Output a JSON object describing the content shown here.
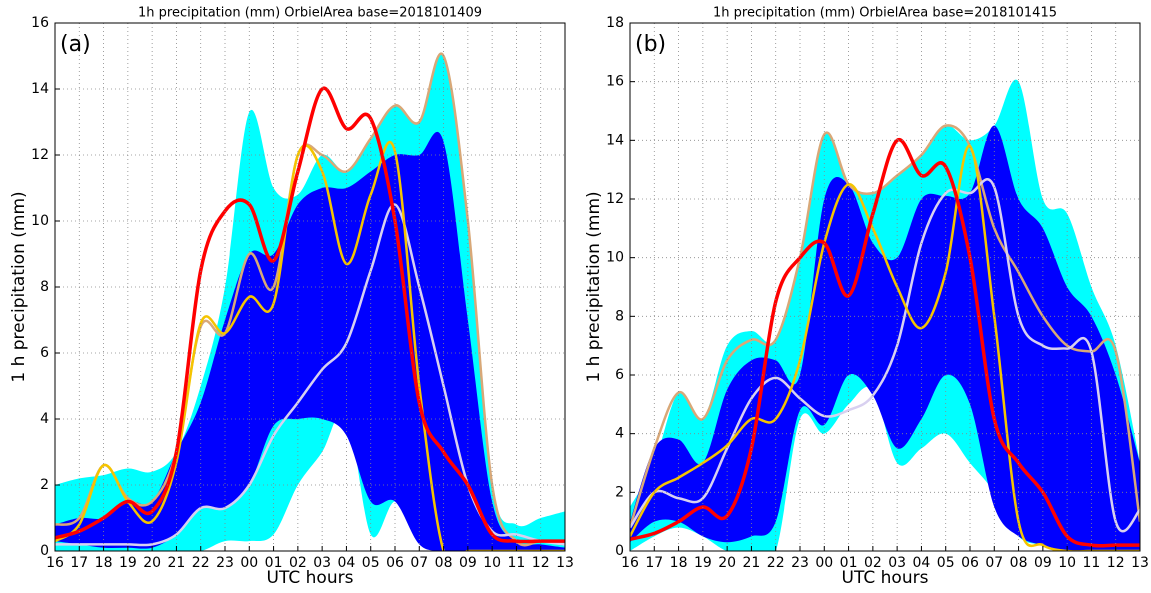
{
  "chart_data": [
    {
      "type": "line",
      "title": "1h precipitation (mm) OrbielArea base=2018101409",
      "annotation": "(a)",
      "x_label": "UTC hours",
      "y_label": "1 h precipitation (mm)",
      "categories": [
        "16",
        "17",
        "18",
        "19",
        "20",
        "21",
        "22",
        "23",
        "00",
        "01",
        "02",
        "03",
        "04",
        "05",
        "06",
        "07",
        "08",
        "09",
        "10",
        "11",
        "12",
        "13"
      ],
      "ylim": [
        0,
        16
      ],
      "yticks": [
        0,
        2,
        4,
        6,
        8,
        10,
        12,
        14,
        16
      ],
      "grid": true,
      "series": [
        {
          "kind": "band",
          "color": "#00ffff",
          "values": [
            2.0,
            2.2,
            2.3,
            2.5,
            2.4,
            3.0,
            5.0,
            8.0,
            13.3,
            11.0,
            10.8,
            12.0,
            11.5,
            12.5,
            13.5,
            13.0,
            15.0,
            10.0,
            2.0,
            0.8,
            1.0,
            1.2
          ],
          "low": [
            0,
            0,
            0,
            0,
            0,
            0,
            0,
            0.3,
            0.3,
            0.5,
            2.0,
            3.0,
            4.2,
            0.5,
            1.5,
            0.5,
            0,
            0,
            0,
            0,
            0,
            0
          ]
        },
        {
          "kind": "band",
          "color": "#0000ff",
          "values": [
            0.8,
            1.0,
            1.0,
            1.5,
            1.5,
            3.0,
            4.5,
            7.0,
            9.0,
            9.0,
            10.5,
            11.0,
            11.0,
            11.5,
            12.0,
            12.0,
            12.4,
            7.0,
            1.5,
            0.3,
            0.2,
            0.1
          ],
          "low": [
            0.3,
            0.2,
            0.1,
            0.1,
            0.1,
            0.5,
            1.3,
            1.3,
            2.0,
            3.8,
            4.0,
            4.0,
            3.5,
            1.5,
            1.5,
            0.2,
            0,
            0,
            0,
            0,
            0,
            0
          ]
        },
        {
          "color": "#d8a878",
          "values": [
            0.8,
            1.0,
            2.6,
            1.6,
            1.5,
            3.0,
            6.8,
            6.6,
            9.0,
            8.0,
            12.0,
            12.0,
            11.5,
            12.5,
            13.5,
            13.0,
            15.0,
            10.0,
            2.0,
            0.3,
            0.3,
            0.3
          ]
        },
        {
          "color": "#d8d0f0",
          "values": [
            0.2,
            0.2,
            0.2,
            0.2,
            0.2,
            0.5,
            1.3,
            1.3,
            2.0,
            3.5,
            4.5,
            5.5,
            6.3,
            8.5,
            10.5,
            8.0,
            5.0,
            2.0,
            0.6,
            0.5,
            0.3,
            0.2
          ]
        },
        {
          "color": "#f5c400",
          "values": [
            0.3,
            0.8,
            2.6,
            1.5,
            0.9,
            2.7,
            6.9,
            6.6,
            7.7,
            7.5,
            12.0,
            11.5,
            8.7,
            10.8,
            12.1,
            5.0,
            0,
            0,
            0,
            0,
            0,
            0
          ]
        },
        {
          "color": "#ff0000",
          "values": [
            0.4,
            0.6,
            1.0,
            1.5,
            1.2,
            3.0,
            8.5,
            10.3,
            10.5,
            8.8,
            11.5,
            14.0,
            12.8,
            13.1,
            10.0,
            4.5,
            3.0,
            2.0,
            0.5,
            0.3,
            0.3,
            0.3
          ]
        }
      ]
    },
    {
      "type": "line",
      "title": "1h precipitation (mm) OrbielArea base=2018101415",
      "annotation": "(b)",
      "x_label": "UTC hours",
      "y_label": "1 h precipitation (mm)",
      "categories": [
        "16",
        "17",
        "18",
        "19",
        "20",
        "21",
        "22",
        "23",
        "00",
        "01",
        "02",
        "03",
        "04",
        "05",
        "06",
        "07",
        "08",
        "09",
        "10",
        "11",
        "12",
        "13"
      ],
      "ylim": [
        0,
        18
      ],
      "yticks": [
        0,
        2,
        4,
        6,
        8,
        10,
        12,
        14,
        16,
        18
      ],
      "grid": true,
      "series": [
        {
          "kind": "band",
          "color": "#00ffff",
          "values": [
            1.5,
            3.0,
            5.4,
            4.5,
            7.0,
            7.5,
            7.2,
            10.0,
            14.2,
            12.5,
            12.2,
            12.8,
            13.5,
            14.5,
            14.0,
            14.5,
            16.0,
            12.0,
            11.5,
            9.0,
            7.0,
            3.0
          ],
          "low": [
            0,
            0.5,
            0.8,
            0.5,
            0,
            0,
            0,
            4.5,
            4.0,
            5.0,
            5.5,
            3.0,
            3.5,
            4.0,
            3.0,
            2.0,
            0.5,
            0.2,
            0,
            0,
            0,
            0
          ]
        },
        {
          "kind": "band",
          "color": "#0000ff",
          "values": [
            1.0,
            3.5,
            3.8,
            3.0,
            5.5,
            6.5,
            6.5,
            6.0,
            12.0,
            12.5,
            10.5,
            10.0,
            12.0,
            12.1,
            12.2,
            14.5,
            12.0,
            11.0,
            9.0,
            8.0,
            6.0,
            3.0
          ],
          "low": [
            0.3,
            1.0,
            1.0,
            0.5,
            0.3,
            0.5,
            1.0,
            4.8,
            4.3,
            6.0,
            5.3,
            3.5,
            4.5,
            6.0,
            5.0,
            1.5,
            0.5,
            0.2,
            0,
            0,
            0,
            0
          ]
        },
        {
          "color": "#d8a878",
          "values": [
            0.8,
            3.5,
            5.4,
            4.5,
            6.5,
            7.2,
            7.2,
            10.0,
            14.2,
            12.5,
            12.2,
            12.8,
            13.5,
            14.5,
            13.8,
            11.0,
            9.5,
            8.0,
            7.0,
            6.8,
            6.8,
            1.0
          ]
        },
        {
          "color": "#d8d0f0",
          "values": [
            0.8,
            2.0,
            1.8,
            1.8,
            3.5,
            5.2,
            5.9,
            5.2,
            4.6,
            4.8,
            5.3,
            7.0,
            10.5,
            12.2,
            12.2,
            12.4,
            8.0,
            7.0,
            6.9,
            6.8,
            1.0,
            1.4
          ]
        },
        {
          "color": "#f5c400",
          "values": [
            0.5,
            2.0,
            2.5,
            3.0,
            3.6,
            4.5,
            4.5,
            6.5,
            10.5,
            12.5,
            11.0,
            9.0,
            7.6,
            9.5,
            13.8,
            8.0,
            1.0,
            0.2,
            0,
            0,
            0,
            0
          ]
        },
        {
          "color": "#ff0000",
          "values": [
            0.4,
            0.6,
            1.0,
            1.5,
            1.2,
            3.5,
            8.5,
            10.0,
            10.5,
            8.7,
            11.5,
            14.0,
            12.8,
            13.1,
            10.0,
            4.5,
            3.0,
            2.0,
            0.5,
            0.2,
            0.2,
            0.2
          ]
        }
      ]
    }
  ]
}
